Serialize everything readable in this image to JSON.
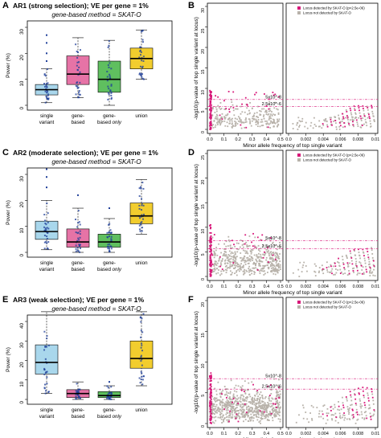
{
  "figure": {
    "rows": [
      {
        "left_label": "A",
        "right_label": "B",
        "title": "AR1 (strong selection); VE per gene = 1%",
        "subtitle": "gene-based method = SKAT-O"
      },
      {
        "left_label": "C",
        "right_label": "D",
        "title": "AR2 (moderate selection); VE per gene = 1%",
        "subtitle": "gene-based method = SKAT-O"
      },
      {
        "left_label": "E",
        "right_label": "F",
        "title": "AR3 (weak selection); VE per gene = 1%",
        "subtitle": "gene-based method = SKAT-O"
      }
    ],
    "box_categories": [
      {
        "line1": "single",
        "line2": "variant"
      },
      {
        "line1": "gene-",
        "line2": "based"
      },
      {
        "line1": "gene-",
        "line2": "based only"
      },
      {
        "line1": "union",
        "line2": ""
      }
    ],
    "box_ylabel": "Power (%)",
    "scatter_ylabel": "-log10(p-value of top single variant at locus)",
    "scatter_xlabel": "Minor allele frequency of top single variant",
    "legend": [
      "Locus detected by SKAT-O (p<2.5e-06)",
      "Locus not detected by SKAT-O"
    ],
    "threshold_labels": [
      "5x10^-8",
      "2.5x10^-6"
    ]
  },
  "colors": {
    "single_variant": "#a9d7ec",
    "gene_based": "#e673a6",
    "gene_based_only": "#5fbf5f",
    "union": "#f2cd2e",
    "detected": "#d8187a",
    "not_detected": "#b8b2aa",
    "jitter": "#1f3f99"
  },
  "chart_data": [
    {
      "type": "box",
      "panel": "A",
      "title": "AR1 (strong selection); VE per gene = 1%",
      "subtitle": "gene-based method = SKAT-O",
      "ylabel": "Power (%)",
      "ylim": [
        0,
        30
      ],
      "yticks": [
        0,
        10,
        20,
        30
      ],
      "series": [
        {
          "category": "single variant",
          "min": 1,
          "q1": 4,
          "median": 6,
          "q3": 8,
          "max": 14,
          "outliers": [
            17,
            20,
            24,
            27
          ]
        },
        {
          "category": "gene-based",
          "min": 3,
          "q1": 8,
          "median": 12,
          "q3": 19,
          "max": 26,
          "outliers": []
        },
        {
          "category": "gene-based only",
          "min": 0,
          "q1": 5,
          "median": 10,
          "q3": 17,
          "max": 25,
          "outliers": []
        },
        {
          "category": "union",
          "min": 10,
          "q1": 14,
          "median": 18,
          "q3": 22,
          "max": 29,
          "outliers": []
        }
      ]
    },
    {
      "type": "scatter",
      "panel": "B",
      "ylabel": "-log10(p-value of top single variant at locus)",
      "xlabel": "Minor allele frequency of top single variant",
      "left_xlim": [
        0,
        0.5
      ],
      "left_xticks": [
        0.0,
        0.1,
        0.2,
        0.3,
        0.4,
        0.5
      ],
      "right_xlim": [
        0,
        0.01
      ],
      "right_xticks": [
        0.0,
        0.002,
        0.004,
        0.006,
        0.008,
        0.01
      ],
      "ylim": [
        0,
        30
      ],
      "yticks": [
        0,
        5,
        10,
        15,
        20,
        25,
        30
      ],
      "thresholds": [
        7.3,
        5.6
      ],
      "legend": [
        "Locus detected by SKAT-O (p<2.5e-06)",
        "Locus not detected by SKAT-O"
      ]
    },
    {
      "type": "box",
      "panel": "C",
      "title": "AR2 (moderate selection); VE per gene = 1%",
      "subtitle": "gene-based method = SKAT-O",
      "ylabel": "Power (%)",
      "ylim": [
        0,
        30
      ],
      "yticks": [
        0,
        10,
        20,
        30
      ],
      "series": [
        {
          "category": "single variant",
          "min": 1,
          "q1": 5,
          "median": 8,
          "q3": 12,
          "max": 20,
          "outliers": [
            25,
            29,
            32
          ]
        },
        {
          "category": "gene-based",
          "min": 0,
          "q1": 2,
          "median": 4,
          "q3": 9,
          "max": 17,
          "outliers": [
            22
          ]
        },
        {
          "category": "gene-based only",
          "min": 0,
          "q1": 2,
          "median": 4,
          "q3": 7,
          "max": 13,
          "outliers": [
            17
          ]
        },
        {
          "category": "union",
          "min": 7,
          "q1": 11,
          "median": 14,
          "q3": 19,
          "max": 28,
          "outliers": []
        }
      ]
    },
    {
      "type": "scatter",
      "panel": "D",
      "ylabel": "-log10(p-value of top single variant at locus)",
      "xlabel": "Minor allele frequency of top single variant",
      "left_xlim": [
        0,
        0.5
      ],
      "left_xticks": [
        0.0,
        0.1,
        0.2,
        0.3,
        0.4,
        0.5
      ],
      "right_xlim": [
        0,
        0.01
      ],
      "right_xticks": [
        0.0,
        0.002,
        0.004,
        0.006,
        0.008,
        0.01
      ],
      "ylim": [
        0,
        25
      ],
      "yticks": [
        0,
        5,
        10,
        15,
        20,
        25
      ],
      "thresholds": [
        7.3,
        5.6
      ],
      "legend": [
        "Locus detected by SKAT-O (p<2.5e-06)",
        "Locus not detected by SKAT-O"
      ]
    },
    {
      "type": "box",
      "panel": "E",
      "title": "AR3 (weak selection); VE per gene = 1%",
      "subtitle": "gene-based method = SKAT-O",
      "ylabel": "Power (%)",
      "ylim": [
        0,
        40
      ],
      "yticks": [
        0,
        10,
        20,
        30,
        40
      ],
      "series": [
        {
          "category": "single variant",
          "min": 3,
          "q1": 13,
          "median": 19,
          "q3": 28,
          "max": 45,
          "outliers": []
        },
        {
          "category": "gene-based",
          "min": 0,
          "q1": 1,
          "median": 3,
          "q3": 5,
          "max": 9,
          "outliers": []
        },
        {
          "category": "gene-based only",
          "min": 0,
          "q1": 1,
          "median": 2,
          "q3": 4,
          "max": 7,
          "outliers": [
            9
          ]
        },
        {
          "category": "union",
          "min": 7,
          "q1": 16,
          "median": 21,
          "q3": 30,
          "max": 45,
          "outliers": []
        }
      ]
    },
    {
      "type": "scatter",
      "panel": "F",
      "ylabel": "-log10(p-value of top single variant at locus)",
      "xlabel": "Minor allele frequency of top single variant",
      "left_xlim": [
        0,
        0.5
      ],
      "left_xticks": [
        0.0,
        0.1,
        0.2,
        0.3,
        0.4,
        0.5
      ],
      "right_xlim": [
        0,
        0.01
      ],
      "right_xticks": [
        0.0,
        0.002,
        0.004,
        0.006,
        0.008,
        0.01
      ],
      "ylim": [
        0,
        20
      ],
      "yticks": [
        0,
        5,
        10,
        15,
        20
      ],
      "thresholds": [
        7.3,
        5.6
      ],
      "legend": [
        "Locus detected by SKAT-O (p<2.5e-06)",
        "Locus not detected by SKAT-O"
      ]
    }
  ]
}
